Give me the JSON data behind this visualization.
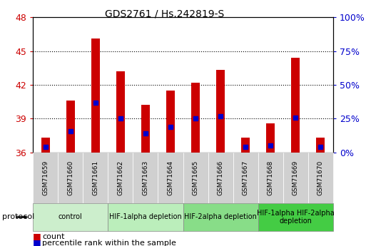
{
  "title": "GDS2761 / Hs.242819-S",
  "samples": [
    "GSM71659",
    "GSM71660",
    "GSM71661",
    "GSM71662",
    "GSM71663",
    "GSM71664",
    "GSM71665",
    "GSM71666",
    "GSM71667",
    "GSM71668",
    "GSM71669",
    "GSM71670"
  ],
  "count_values": [
    37.3,
    40.6,
    46.1,
    43.2,
    40.2,
    41.5,
    42.2,
    43.3,
    37.3,
    38.6,
    44.4,
    37.3
  ],
  "blue_dot_y": [
    36.5,
    37.9,
    40.4,
    39.0,
    37.7,
    38.3,
    39.0,
    39.2,
    36.5,
    36.6,
    39.1,
    36.5
  ],
  "ylim_left": [
    36,
    48
  ],
  "yticks_left": [
    36,
    39,
    42,
    45,
    48
  ],
  "ylim_right": [
    0,
    100
  ],
  "yticks_right": [
    0,
    25,
    50,
    75,
    100
  ],
  "ytick_labels_right": [
    "0%",
    "25%",
    "50%",
    "75%",
    "100%"
  ],
  "bar_bottom": 36.0,
  "bar_color": "#cc0000",
  "dot_color": "#0000cc",
  "protocol_groups": [
    {
      "label": "control",
      "start": 0,
      "end": 2,
      "color": "#cceecc"
    },
    {
      "label": "HIF-1alpha depletion",
      "start": 3,
      "end": 5,
      "color": "#bbeebb"
    },
    {
      "label": "HIF-2alpha depletion",
      "start": 6,
      "end": 8,
      "color": "#88dd88"
    },
    {
      "label": "HIF-1alpha HIF-2alpha\ndepletion",
      "start": 9,
      "end": 11,
      "color": "#44cc44"
    }
  ]
}
